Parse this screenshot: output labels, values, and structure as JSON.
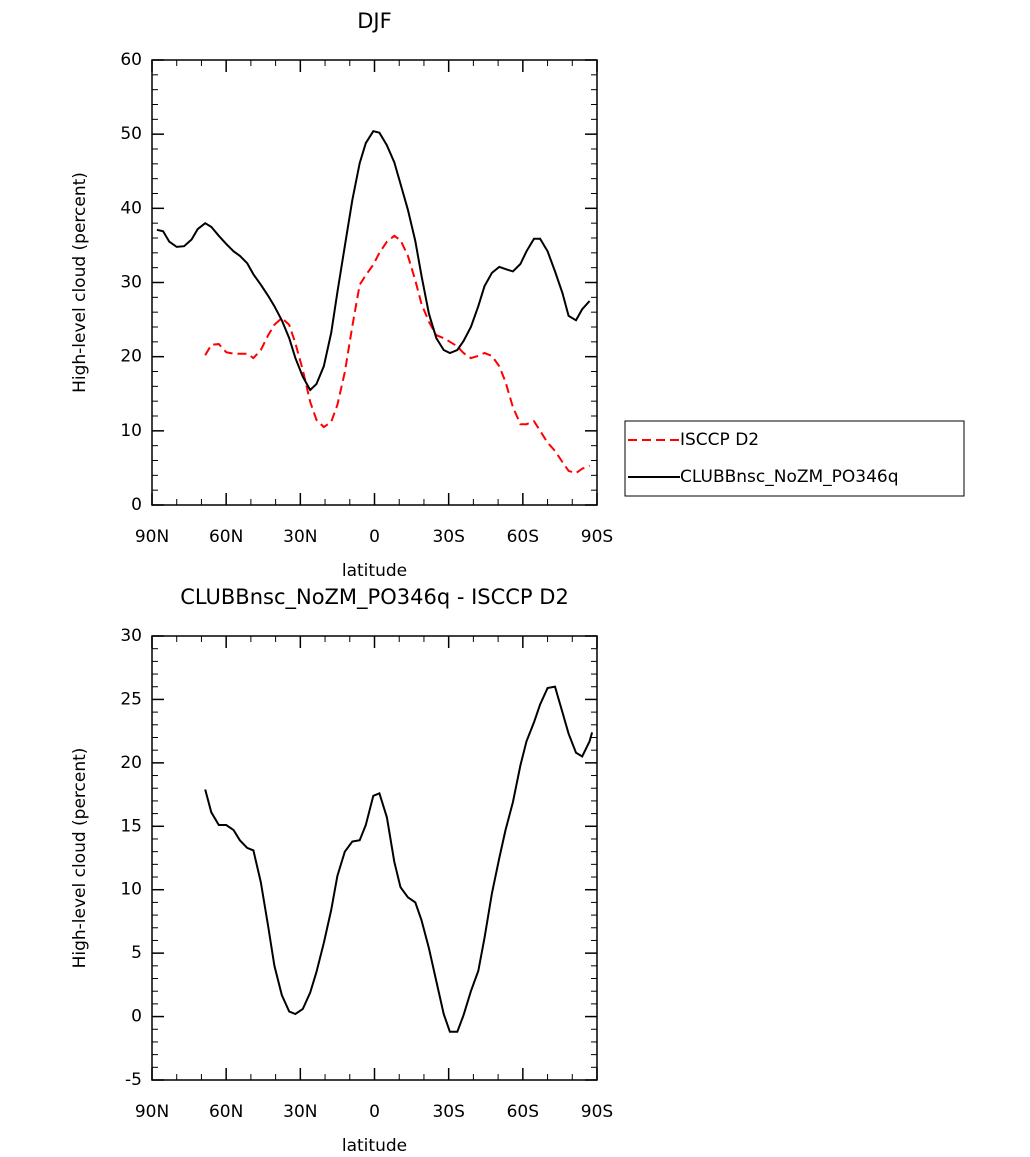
{
  "chart_data": [
    {
      "type": "line",
      "title": "DJF",
      "xlabel": "latitude",
      "ylabel": "High-level cloud (percent)",
      "xlim": [
        90,
        -90
      ],
      "xticks": [
        {
          "value": 90,
          "label": "90N"
        },
        {
          "value": 60,
          "label": "60N"
        },
        {
          "value": 30,
          "label": "30N"
        },
        0,
        {
          "value": -30,
          "label": "30S"
        },
        {
          "value": -60,
          "label": "60S"
        },
        {
          "value": -90,
          "label": "90S"
        }
      ],
      "ylim": [
        0,
        60
      ],
      "yticks": [
        0,
        10,
        20,
        30,
        40,
        50,
        60
      ],
      "legend": "right",
      "series": [
        {
          "name": "ISCCP D2",
          "color": "#ff0000",
          "linestyle": "dashed",
          "x": [
            68.5,
            66,
            63,
            60,
            57,
            54.5,
            51.5,
            49,
            46,
            43,
            40.5,
            37.5,
            34.5,
            32,
            29,
            26,
            23.5,
            20.5,
            17.5,
            15,
            12,
            9,
            6,
            3.5,
            0.5,
            -2,
            -5,
            -8,
            -10.5,
            -13.5,
            -16.5,
            -19,
            -22,
            -25,
            -28,
            -30.5,
            -33.5,
            -36,
            -39,
            -42,
            -44.5,
            -47.5,
            -50.5,
            -53,
            -56,
            -59,
            -61.5,
            -64.5,
            -67,
            -70,
            -73,
            -76,
            -78.5,
            -81.5,
            -84,
            -87
          ],
          "values": [
            20.2,
            21.6,
            21.7,
            20.6,
            20.4,
            20.4,
            20.4,
            19.8,
            20.9,
            22.9,
            24.3,
            25.2,
            24.3,
            21.8,
            18.2,
            13.9,
            11.5,
            10.5,
            11.2,
            13.5,
            17.9,
            24.1,
            29.7,
            31.0,
            32.4,
            34.0,
            35.5,
            36.3,
            35.7,
            33.6,
            30.3,
            27.1,
            24.7,
            22.9,
            22.5,
            22.0,
            21.4,
            20.5,
            19.8,
            20.1,
            20.5,
            20.1,
            18.7,
            16.6,
            13.2,
            10.9,
            10.9,
            11.3,
            10.0,
            8.4,
            7.3,
            5.8,
            4.6,
            4.3,
            4.9,
            5.3
          ]
        },
        {
          "name": "CLUBBnsc_NoZM_PO346q",
          "color": "#000000",
          "linestyle": "solid",
          "x": [
            88,
            85.5,
            83,
            80,
            77,
            74,
            71.5,
            68.5,
            66,
            63,
            60,
            57,
            54.5,
            51.5,
            49,
            46,
            43,
            40.5,
            37.5,
            34.5,
            32,
            29,
            26,
            23.5,
            20.5,
            17.5,
            15,
            12,
            9,
            6,
            3.5,
            0.5,
            -2,
            -5,
            -8,
            -10.5,
            -13.5,
            -16.5,
            -19,
            -22,
            -25,
            -28,
            -30.5,
            -33.5,
            -36,
            -39,
            -42,
            -44.5,
            -47.5,
            -50.5,
            -53,
            -56,
            -59,
            -61.5,
            -64.5,
            -67,
            -70,
            -73,
            -76,
            -78.5,
            -81.5,
            -84,
            -87
          ],
          "values": [
            37.1,
            36.9,
            35.5,
            34.8,
            34.9,
            35.8,
            37.2,
            38.0,
            37.5,
            36.3,
            35.2,
            34.2,
            33.6,
            32.6,
            31.1,
            29.7,
            28.2,
            26.8,
            24.9,
            22.5,
            19.8,
            17.3,
            15.5,
            16.3,
            18.7,
            23.2,
            28.7,
            34.9,
            41.1,
            46.1,
            48.8,
            50.4,
            50.2,
            48.5,
            46.2,
            43.3,
            39.8,
            35.6,
            30.9,
            25.8,
            22.5,
            20.9,
            20.5,
            20.9,
            22.1,
            24.0,
            26.8,
            29.5,
            31.3,
            32.1,
            31.8,
            31.5,
            32.5,
            34.2,
            35.9,
            35.9,
            34.2,
            31.5,
            28.6,
            25.5,
            24.9,
            26.4,
            27.5
          ]
        }
      ]
    },
    {
      "type": "line",
      "title": "CLUBBnsc_NoZM_PO346q - ISCCP D2",
      "xlabel": "latitude",
      "ylabel": "High-level cloud (percent)",
      "xlim": [
        90,
        -90
      ],
      "xticks": [
        {
          "value": 90,
          "label": "90N"
        },
        {
          "value": 60,
          "label": "60N"
        },
        {
          "value": 30,
          "label": "30N"
        },
        0,
        {
          "value": -30,
          "label": "30S"
        },
        {
          "value": -60,
          "label": "60S"
        },
        {
          "value": -90,
          "label": "90S"
        }
      ],
      "ylim": [
        -5,
        30
      ],
      "yticks": [
        -5,
        0,
        5,
        10,
        15,
        20,
        25,
        30
      ],
      "color": "#000000",
      "x": [
        68.5,
        66,
        63,
        60,
        57,
        54.5,
        51.5,
        49,
        46,
        43,
        40.5,
        37.5,
        34.5,
        32,
        29,
        26,
        23.5,
        20.5,
        17.5,
        15,
        12,
        9,
        6,
        3.5,
        0.5,
        -2,
        -5,
        -8,
        -10.5,
        -13.5,
        -16.5,
        -19,
        -22,
        -25,
        -28,
        -30.5,
        -33.5,
        -36,
        -39,
        -42,
        -44.5,
        -47.5,
        -50.5,
        -53,
        -56,
        -59,
        -61.5,
        -64.5,
        -67,
        -70,
        -73,
        -76,
        -78.5,
        -81.5,
        -84,
        -87,
        -88
      ],
      "values": [
        17.9,
        16.1,
        15.1,
        15.1,
        14.7,
        13.9,
        13.3,
        13.1,
        10.6,
        7.1,
        4.0,
        1.7,
        0.4,
        0.2,
        0.6,
        1.9,
        3.5,
        5.8,
        8.4,
        11.1,
        13.0,
        13.8,
        13.9,
        15.1,
        17.4,
        17.6,
        15.7,
        12.2,
        10.2,
        9.4,
        9.0,
        7.6,
        5.4,
        2.8,
        0.2,
        -1.2,
        -1.2,
        0.1,
        2.0,
        3.6,
        6.2,
        9.7,
        12.5,
        14.7,
        16.9,
        19.8,
        21.7,
        23.2,
        24.6,
        25.9,
        26.0,
        24.0,
        22.3,
        20.8,
        20.5,
        21.7,
        22.4
      ]
    }
  ]
}
